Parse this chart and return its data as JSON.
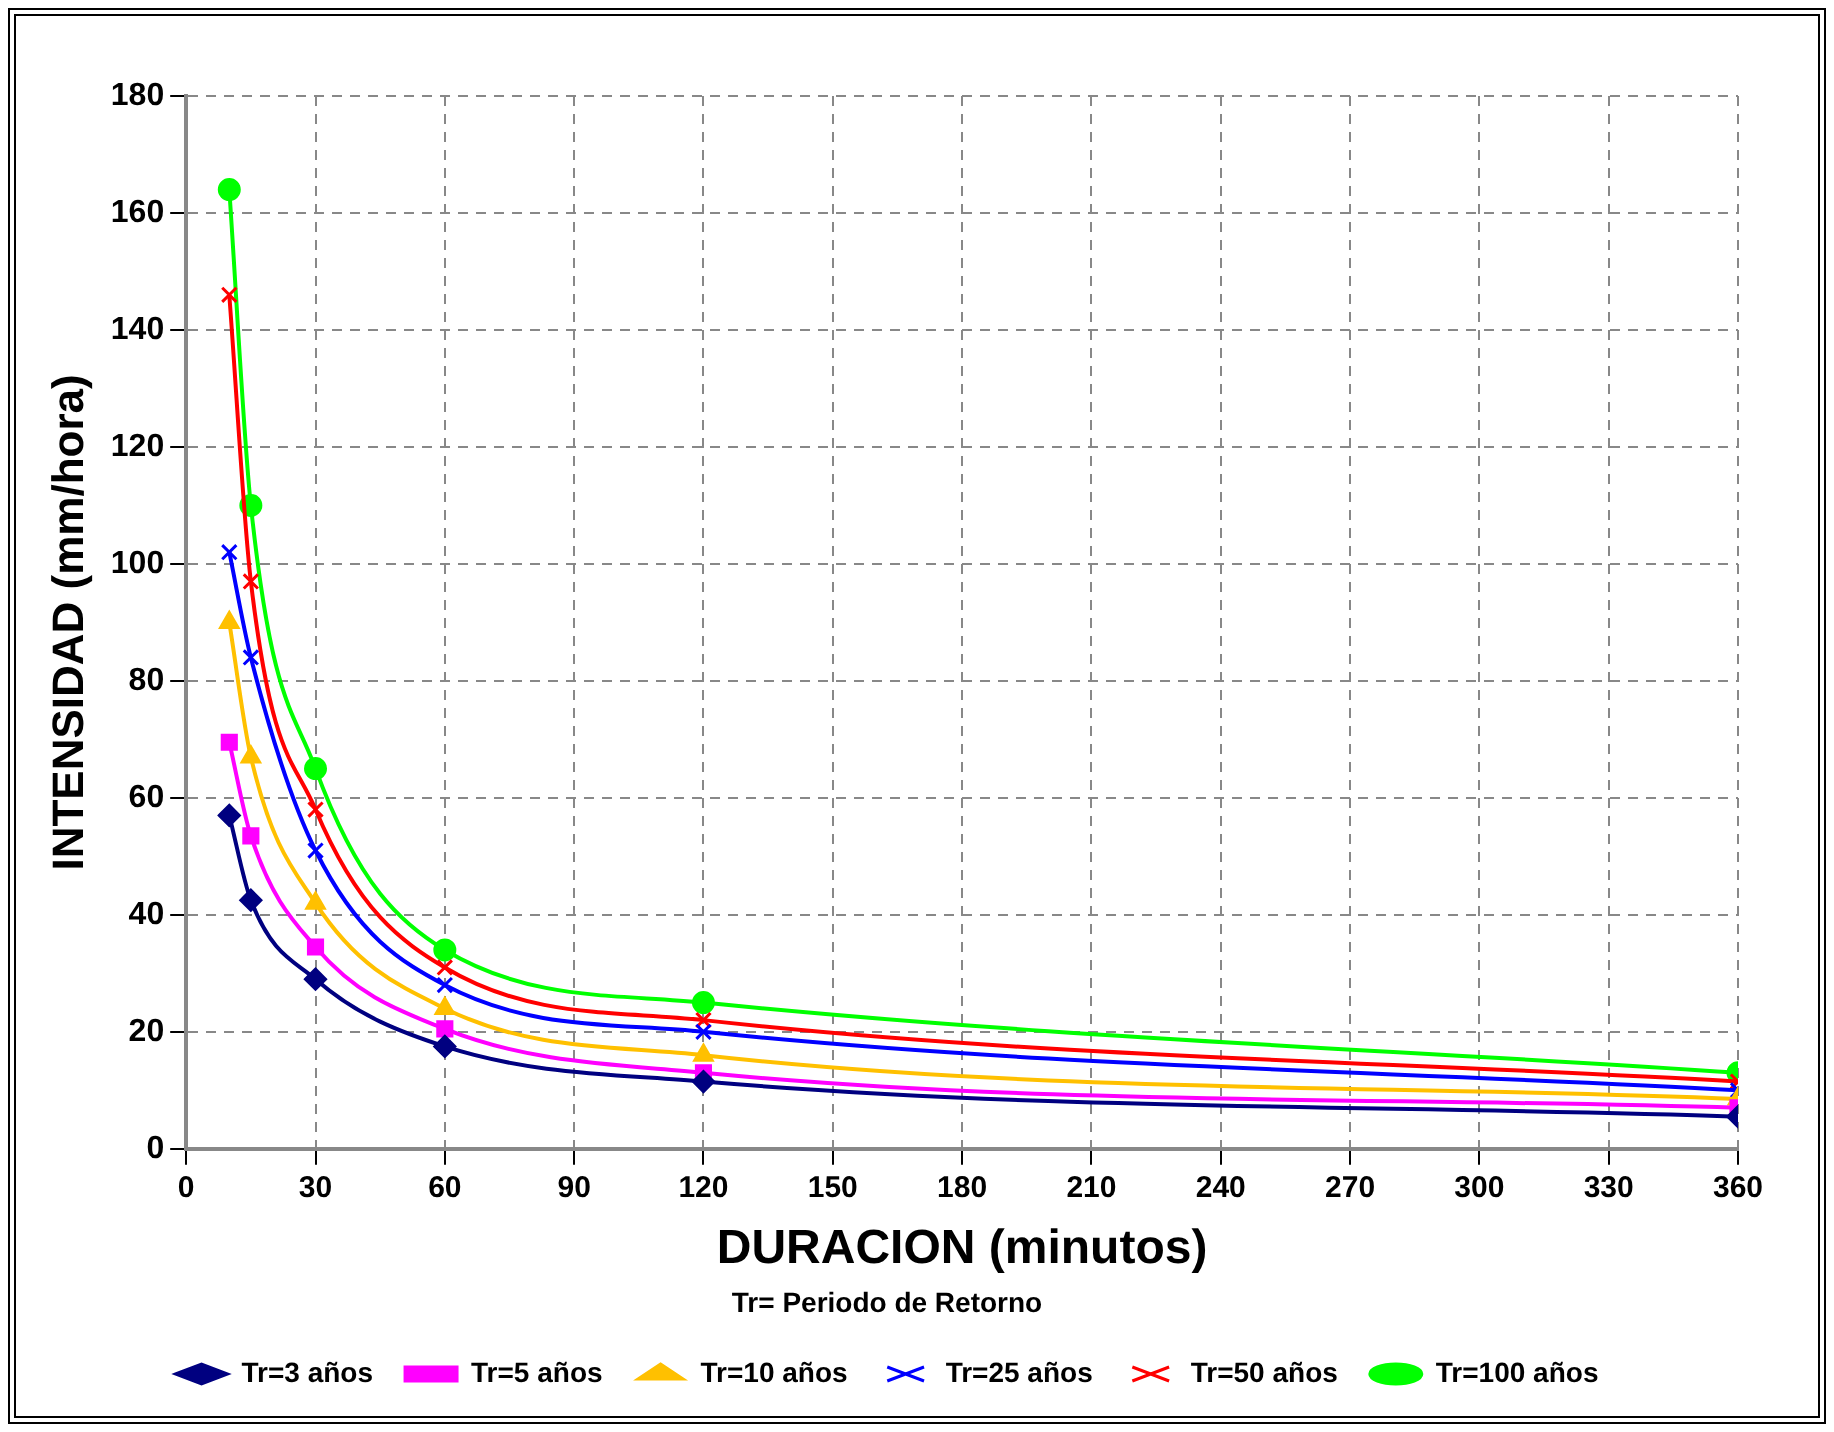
{
  "chart_data": {
    "type": "line",
    "xlabel": "DURACION (minutos)",
    "ylabel": "INTENSIDAD (mm/hora)",
    "legend_title": "Tr= Periodo de Retorno",
    "x": [
      10,
      15,
      30,
      60,
      120,
      360
    ],
    "series": [
      {
        "name": "Tr=3 años",
        "color": "#000080",
        "marker": "diamond",
        "values": [
          57,
          42.5,
          29,
          17.5,
          11.5,
          5.5
        ]
      },
      {
        "name": "Tr=5 años",
        "color": "#ff00ff",
        "marker": "square",
        "values": [
          69.5,
          53.5,
          34.5,
          20.5,
          13,
          7
        ]
      },
      {
        "name": "Tr=10 años",
        "color": "#ffc000",
        "marker": "triangle",
        "values": [
          90,
          67,
          42,
          24,
          16,
          8.5
        ]
      },
      {
        "name": "Tr=25 años",
        "color": "#0000ff",
        "marker": "cross",
        "values": [
          102,
          84,
          51,
          28,
          20,
          10
        ]
      },
      {
        "name": "Tr=50 años",
        "color": "#ff0000",
        "marker": "cross",
        "values": [
          146,
          97,
          58,
          31,
          22,
          11.5
        ]
      },
      {
        "name": "Tr=100 años",
        "color": "#00ff00",
        "marker": "circle",
        "values": [
          164,
          110,
          65,
          34,
          25,
          13
        ]
      }
    ],
    "xlim": [
      0,
      360
    ],
    "xticks": [
      0,
      30,
      60,
      90,
      120,
      150,
      180,
      210,
      240,
      270,
      300,
      330,
      360
    ],
    "ylim": [
      0,
      180
    ],
    "yticks": [
      0,
      20,
      40,
      60,
      80,
      100,
      120,
      140,
      160,
      180
    ],
    "grid": true,
    "legend": "bottom",
    "line_style": "solid"
  }
}
